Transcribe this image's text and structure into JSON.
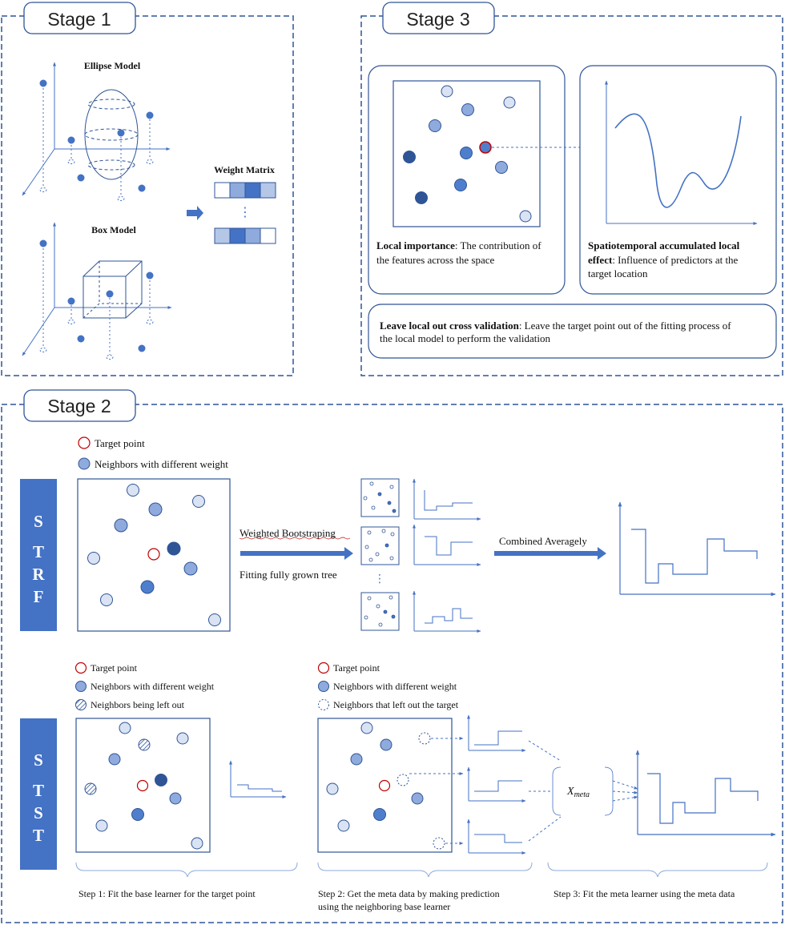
{
  "stage1": {
    "title": "Stage 1",
    "ellipse_label": "Ellipse Model",
    "box_label": "Box Model",
    "weight_matrix_label": "Weight Matrix",
    "ellipsis": "⋮"
  },
  "stage3": {
    "title": "Stage 3",
    "local_importance": {
      "bold": "Local importance",
      "rest1": ": The contribution of",
      "line2": "the features across the space"
    },
    "accumulated": {
      "bold1": "Spatiotemporal accumulated local",
      "bold2": "effect",
      "rest2": ": Influence of predictors at the",
      "line3": "target location"
    },
    "loocv": {
      "bold": "Leave local out cross validation",
      "rest1": ": Leave the target point out of the fitting process of",
      "line2": "the local model to perform the validation"
    }
  },
  "stage2": {
    "title": "Stage 2",
    "strf": {
      "letters": [
        "S",
        "T",
        "R",
        "F"
      ],
      "legend_target": "Target point",
      "legend_neighbors": "Neighbors with different weight",
      "weighted_bootstrap": "Weighted Bootstraping",
      "fitting_tree": "Fitting fully grown tree",
      "combined": "Combined Averagely",
      "ellipsis": "⋮"
    },
    "stst": {
      "letters": [
        "S",
        "T",
        "S",
        "T"
      ],
      "legend1_target": "Target point",
      "legend1_neighbors": "Neighbors with different weight",
      "legend1_left_out": "Neighbors being left out",
      "legend2_target": "Target point",
      "legend2_neighbors": "Neighbors with different weight",
      "legend2_left_out_target": "Neighbors that left out the target",
      "meta_x": "X",
      "meta_sub": "meta",
      "step1": "Step 1: Fit the base learner for the target point",
      "step2_line1": "Step 2: Get the meta data by making prediction",
      "step2_line2": "using the neighboring base learner",
      "step3": "Step 3: Fit the meta learner using the meta data"
    }
  },
  "colors": {
    "frame_blue": "#2F5597",
    "accent_blue": "#4472C4",
    "dark_point": "#2F5597",
    "mid_point": "#4F7FCC",
    "light_point": "#8FAADC",
    "pale_point": "#DAE3F3",
    "target_red": "#C00000"
  }
}
